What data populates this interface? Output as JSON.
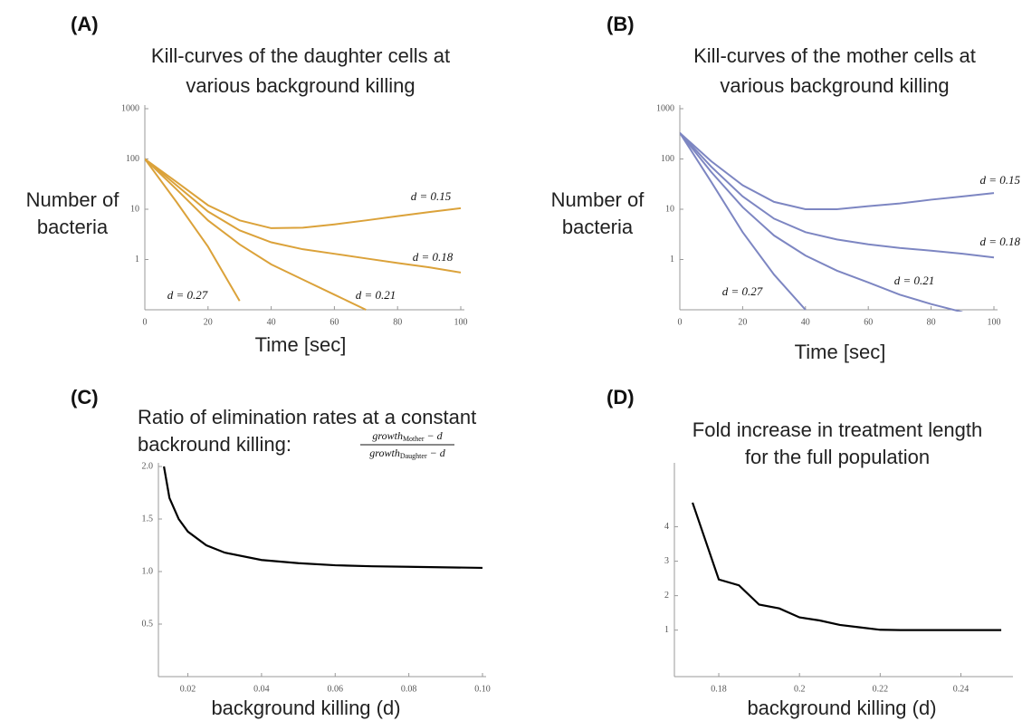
{
  "chart_data": [
    {
      "type": "line",
      "panel_label": "(A)",
      "title": [
        "Kill-curves of the daughter cells at",
        "various background killing"
      ],
      "y_label": [
        "Number of",
        "bacteria"
      ],
      "x_label": "Time [sec]",
      "log_y": true,
      "xlim": [
        0,
        100
      ],
      "ylim": [
        0.1,
        1000
      ],
      "xticks": [
        0,
        20,
        40,
        60,
        80,
        100
      ],
      "yticks": [
        1,
        10,
        100,
        1000
      ],
      "x": [
        0,
        10,
        20,
        30,
        40,
        50,
        60,
        70,
        80,
        90,
        100
      ],
      "series": [
        {
          "name": "d = 0.15",
          "color": "#dba23a",
          "values": [
            100,
            35,
            12,
            6,
            4.2,
            4.3,
            5,
            6,
            7.3,
            8.8,
            10.5
          ]
        },
        {
          "name": "d = 0.18",
          "color": "#dba23a",
          "values": [
            100,
            30,
            9,
            3.8,
            2.2,
            1.6,
            1.3,
            1.05,
            0.85,
            0.7,
            0.55
          ]
        },
        {
          "name": "d = 0.21",
          "color": "#dba23a",
          "values": [
            100,
            25,
            6,
            2,
            0.8,
            0.4,
            0.2,
            0.1,
            null,
            null,
            null
          ]
        },
        {
          "name": "d = 0.27",
          "color": "#dba23a",
          "values": [
            100,
            14,
            1.8,
            0.15,
            null,
            null,
            null,
            null,
            null,
            null,
            null
          ]
        }
      ]
    },
    {
      "type": "line",
      "panel_label": "(B)",
      "title": [
        "Kill-curves of the mother cells at",
        "various background killing"
      ],
      "y_label": [
        "Number of",
        "bacteria"
      ],
      "x_label": "Time [sec]",
      "log_y": true,
      "xlim": [
        0,
        100
      ],
      "ylim": [
        0.1,
        1000
      ],
      "xticks": [
        0,
        20,
        40,
        60,
        80,
        100
      ],
      "yticks": [
        1,
        10,
        100,
        1000
      ],
      "x": [
        0,
        10,
        20,
        30,
        40,
        50,
        60,
        70,
        80,
        90,
        100
      ],
      "series": [
        {
          "name": "d = 0.15",
          "color": "#7d86c2",
          "values": [
            330,
            90,
            30,
            14,
            10,
            10,
            11.5,
            13,
            15.5,
            18,
            21
          ]
        },
        {
          "name": "d = 0.18",
          "color": "#7d86c2",
          "values": [
            330,
            70,
            18,
            6.5,
            3.5,
            2.5,
            2.0,
            1.7,
            1.5,
            1.3,
            1.1
          ]
        },
        {
          "name": "d = 0.21",
          "color": "#7d86c2",
          "values": [
            330,
            55,
            11,
            3,
            1.2,
            0.6,
            0.35,
            0.2,
            0.13,
            0.09,
            null
          ]
        },
        {
          "name": "d = 0.27",
          "color": "#7d86c2",
          "values": [
            330,
            35,
            3.5,
            0.5,
            0.1,
            null,
            null,
            null,
            null,
            null,
            null
          ]
        }
      ]
    },
    {
      "type": "line",
      "panel_label": "(C)",
      "title": [
        "Ratio of elimination rates at a constant",
        "backround killing:"
      ],
      "formula": {
        "numerator": {
          "base": "growth",
          "sub": "Mother",
          "rest": " − d"
        },
        "denominator": {
          "base": "growth",
          "sub": "Daughter",
          "rest": " − d"
        }
      },
      "x_label": "background killing (d)",
      "xlim": [
        0.012,
        0.1
      ],
      "ylim": [
        0,
        2
      ],
      "xticks": [
        0.02,
        0.04,
        0.06,
        0.08,
        {
          "value": 0.1,
          "label": "0.10"
        }
      ],
      "yticks": [
        0.5,
        {
          "value": 1,
          "label": "1.0"
        },
        1.5,
        {
          "value": 2,
          "label": "2.0"
        }
      ],
      "x": [
        0.0135,
        0.015,
        0.0175,
        0.02,
        0.025,
        0.03,
        0.04,
        0.05,
        0.06,
        0.07,
        0.08,
        0.09,
        0.1
      ],
      "series": [
        {
          "color": "#000000",
          "values": [
            2.0,
            1.7,
            1.5,
            1.38,
            1.25,
            1.18,
            1.11,
            1.08,
            1.06,
            1.05,
            1.045,
            1.04,
            1.035
          ]
        }
      ]
    },
    {
      "type": "line",
      "panel_label": "(D)",
      "title": [
        "Fold increase in treatment length",
        "for the full population"
      ],
      "x_label": "background killing (d)",
      "xlim": [
        0.169,
        0.252
      ],
      "ylim": [
        -0.35,
        5.75
      ],
      "xticks": [
        0.18,
        0.2,
        0.22,
        0.24
      ],
      "yticks": [
        1,
        2,
        3,
        4
      ],
      "x": [
        0.1735,
        0.18,
        0.185,
        0.19,
        0.195,
        0.2,
        0.205,
        0.21,
        0.215,
        0.22,
        0.225,
        0.25
      ],
      "series": [
        {
          "color": "#000000",
          "values": [
            4.7,
            2.47,
            2.3,
            1.74,
            1.63,
            1.37,
            1.28,
            1.15,
            1.08,
            1.01,
            1.0,
            1.0
          ]
        }
      ]
    }
  ]
}
